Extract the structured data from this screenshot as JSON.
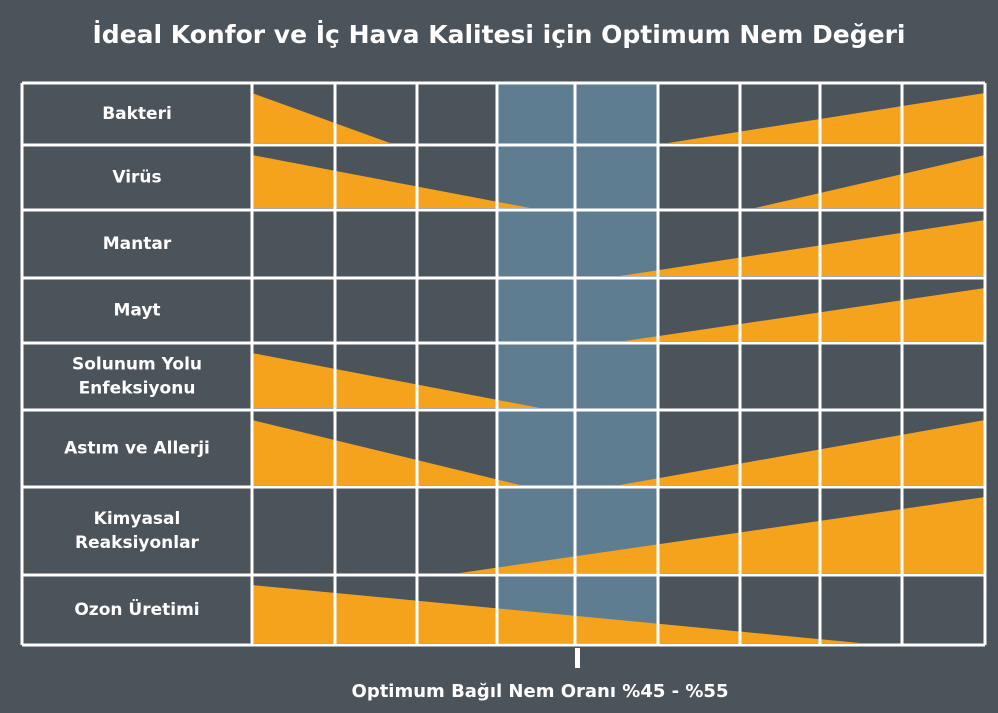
{
  "title": "İdeal Konfor ve İç Hava Kalitesi için Optimum Nem Değeri",
  "rows": [
    {
      "lines": [
        "Bakteri"
      ]
    },
    {
      "lines": [
        "Virüs"
      ]
    },
    {
      "lines": [
        "Mantar"
      ]
    },
    {
      "lines": [
        "Mayt"
      ]
    },
    {
      "lines": [
        "Solunum Yolu",
        "Enfeksiyonu"
      ]
    },
    {
      "lines": [
        "Astım ve Allerji"
      ]
    },
    {
      "lines": [
        "Kimyasal",
        "Reaksiyonlar"
      ]
    },
    {
      "lines": [
        "Ozon Üretimi"
      ]
    }
  ],
  "footer": "Optimum Bağıl Nem Oranı %45 - %55"
}
